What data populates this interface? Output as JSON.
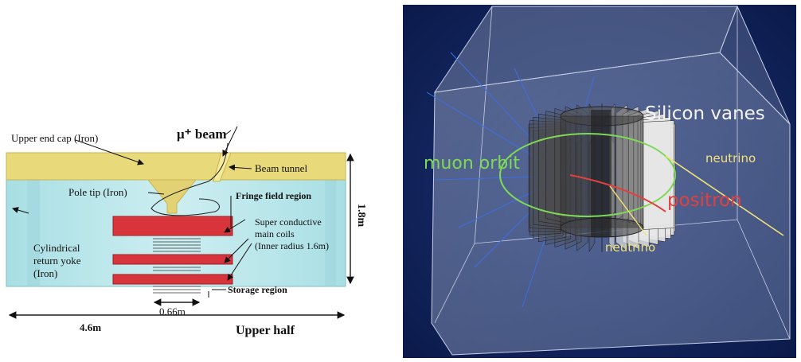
{
  "left_panel": {
    "beam_label": "μ⁺ beam",
    "labels": {
      "upper_end_cap": "Upper end cap (Iron)",
      "beam_tunnel": "Beam tunnel",
      "pole_tip": "Pole tip (Iron)",
      "fringe_field": "Fringe field region",
      "coils_line1": "Super conductive",
      "coils_line2": "main coils",
      "coils_line3": "(Inner radius 1.6m)",
      "yoke_line1": "Cylindrical",
      "yoke_line2": "return yoke",
      "yoke_line3": "(Iron)",
      "storage": "Storage region",
      "width_066": "0.66m",
      "width_46": "4.6m",
      "height_18": "1.8m",
      "upper_half": "Upper half"
    },
    "colors": {
      "iron_yellow": "#e8d97a",
      "yoke_cyan": "#b4e6ea",
      "coil_red": "#d8343c"
    }
  },
  "right_panel": {
    "labels": {
      "silicon_vanes": "Silicon vanes",
      "muon_orbit": "muon orbit",
      "positron": "positron",
      "neutrino_top": "neutrino",
      "neutrino_bottom": "neutrino"
    },
    "colors": {
      "background": "#0e1f55",
      "muon_green": "#7ed957",
      "positron_red": "#e2403e",
      "neutrino_yellow": "#f1e27a",
      "vanes_white": "#f4f4f4"
    }
  }
}
